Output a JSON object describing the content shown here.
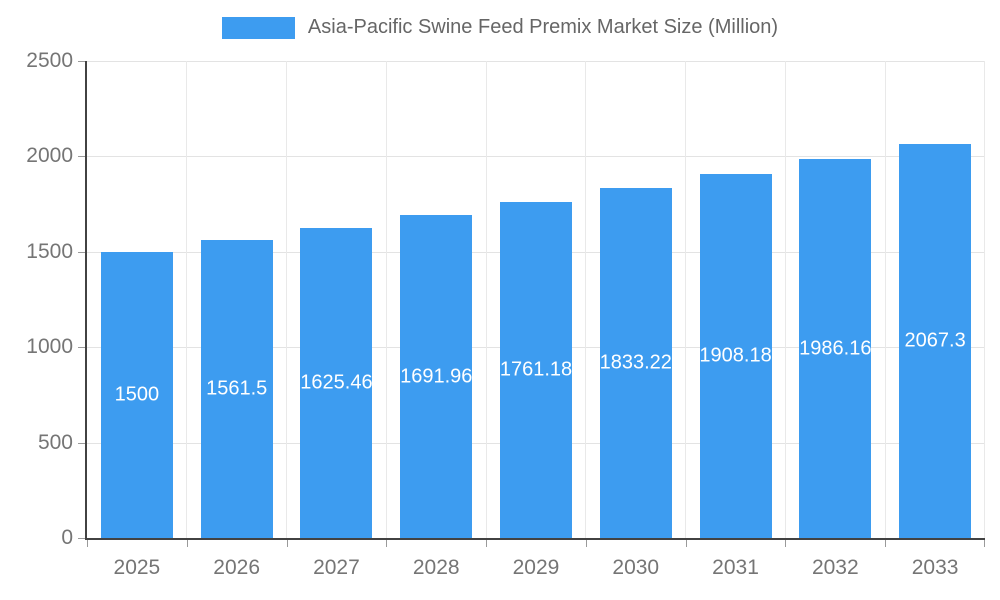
{
  "chart_data": {
    "type": "bar",
    "title": "Asia-Pacific Swine Feed Premix Market Size (Million)",
    "categories": [
      "2025",
      "2026",
      "2027",
      "2028",
      "2029",
      "2030",
      "2031",
      "2032",
      "2033"
    ],
    "values": [
      1500,
      1561.5,
      1625.46,
      1691.96,
      1761.18,
      1833.22,
      1908.18,
      1986.16,
      2067.3
    ],
    "bar_labels": [
      "1500",
      "1561.5",
      "1625.46",
      "1691.96",
      "1761.18",
      "1833.22",
      "1908.18",
      "1986.16",
      "2067.3"
    ],
    "xlabel": "",
    "ylabel": "",
    "ylim": [
      0,
      2500
    ],
    "y_ticks": [
      0,
      500,
      1000,
      1500,
      2000,
      2500
    ],
    "grid": true,
    "legend_position": "top",
    "bar_color": "#3d9cf0",
    "value_label_color": "#ffffff",
    "tick_label_color": "#757575",
    "axis_color": "#424242",
    "gridline_color": "#e3e3e3"
  }
}
